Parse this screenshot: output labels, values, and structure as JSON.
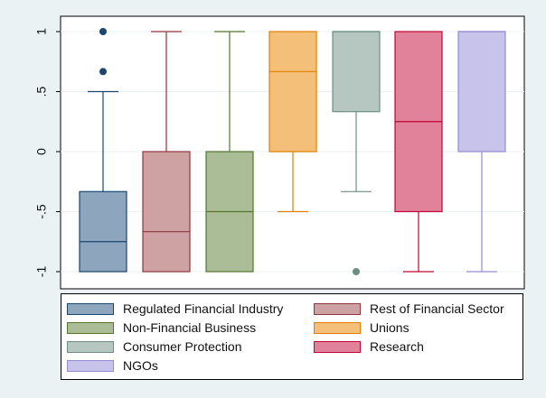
{
  "chart_data": {
    "type": "box",
    "ylim": [
      -1,
      1
    ],
    "yticks": [
      {
        "value": 1,
        "label": "1"
      },
      {
        "value": 0.5,
        "label": ".5"
      },
      {
        "value": 0,
        "label": "0"
      },
      {
        "value": -0.5,
        "label": "-.5"
      },
      {
        "value": -1,
        "label": "-1"
      }
    ],
    "grid": "horizontal",
    "legend_position": "bottom",
    "series": [
      {
        "name": "Regulated Financial Industry",
        "fill": "#8da5bd",
        "stroke": "#1a476f",
        "min": -1,
        "q1": -1,
        "median": -0.75,
        "q3": -0.333,
        "max": 0.5,
        "outliers": [
          1,
          0.667
        ]
      },
      {
        "name": "Rest of Financial Sector",
        "fill": "#cea2a3",
        "stroke": "#90353b",
        "min": -1,
        "q1": -1,
        "median": -0.667,
        "q3": 0,
        "max": 1,
        "outliers": []
      },
      {
        "name": "Non-Financial Business",
        "fill": "#abbd96",
        "stroke": "#55752f",
        "min": -1,
        "q1": -1,
        "median": -0.5,
        "q3": 0,
        "max": 1,
        "outliers": []
      },
      {
        "name": "Unions",
        "fill": "#f4bf78",
        "stroke": "#e37e00",
        "min": -0.5,
        "q1": 0,
        "median": 0.667,
        "q3": 1,
        "max": 1,
        "outliers": []
      },
      {
        "name": "Consumer Protection",
        "fill": "#b6c6c1",
        "stroke": "#6e8e84",
        "min": -0.333,
        "q1": 0.333,
        "median": 1,
        "q3": 1,
        "max": 1,
        "outliers": [
          -1
        ]
      },
      {
        "name": "Research",
        "fill": "#e2819a",
        "stroke": "#c10534",
        "min": -1,
        "q1": -0.5,
        "median": 0.25,
        "q3": 1,
        "max": 1,
        "outliers": []
      },
      {
        "name": "NGOs",
        "fill": "#c8c3eb",
        "stroke": "#938dd2",
        "min": -1,
        "q1": 0,
        "median": 1,
        "q3": 1,
        "max": 1,
        "outliers": []
      }
    ]
  }
}
